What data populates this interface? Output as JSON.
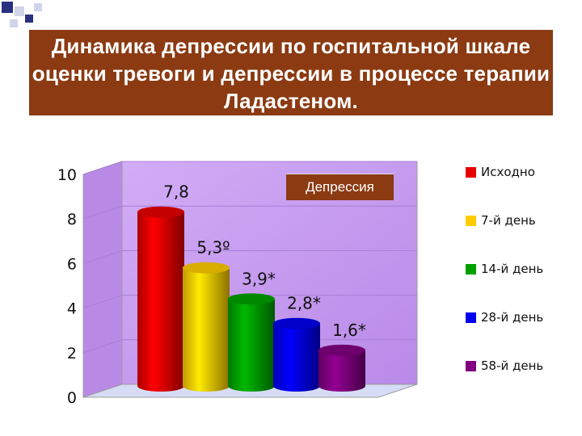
{
  "slide": {
    "title": "Динамика депрессии по госпитальной шкале оценки тревоги и депрессии в процессе терапии Ладастеном."
  },
  "colors": {
    "title_bg": "#8b3a12",
    "plot_wall": "#c79cf0",
    "floor": "#d6dcf5",
    "corner_squares": [
      "#2b2f80",
      "#d0d4e8"
    ]
  },
  "chart_data": {
    "type": "bar",
    "series_label": "Депрессия",
    "ylim": [
      0,
      10
    ],
    "yticks": [
      "0",
      "2",
      "4",
      "6",
      "8",
      "10"
    ],
    "grid": true,
    "legend_position": "right",
    "series": [
      {
        "name": "Исходно",
        "value": 7.8,
        "label": "7,8",
        "color": "#e60000"
      },
      {
        "name": "7-й день",
        "value": 5.3,
        "label": "5,3º",
        "color": "#ffcc00"
      },
      {
        "name": "14-й день",
        "value": 3.9,
        "label": "3,9*",
        "color": "#00a000"
      },
      {
        "name": "28-й день",
        "value": 2.8,
        "label": "2,8*",
        "color": "#0000ee"
      },
      {
        "name": "58-й день",
        "value": 1.6,
        "label": "1,6*",
        "color": "#800080"
      }
    ]
  }
}
